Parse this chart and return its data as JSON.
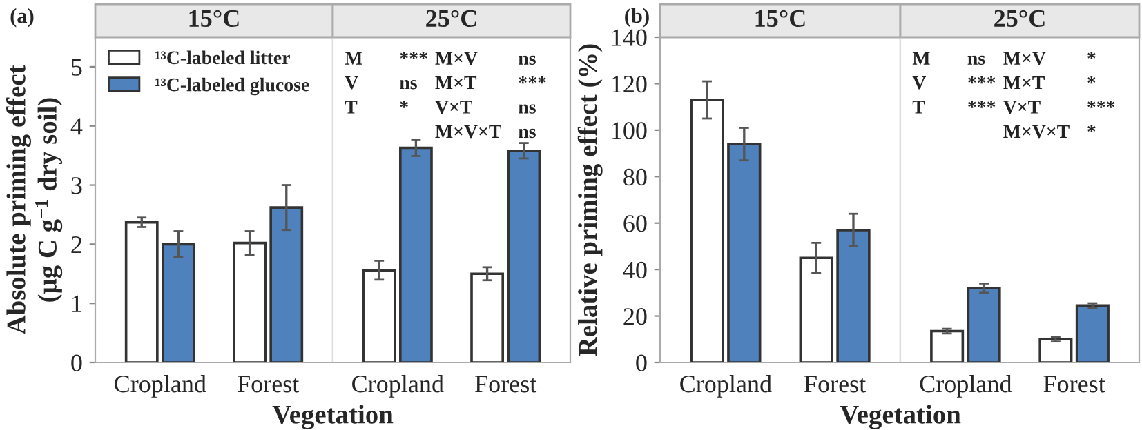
{
  "chart_data": [
    {
      "type": "bar",
      "title": "15°C",
      "ylabel": "Absolute priming effect\n(μg C g$^{−1}$ dry soil)",
      "xlabel": "Vegetation",
      "annotations": [
        "(a)"
      ],
      "categories": [
        "Cropland",
        "Forest"
      ],
      "ylim": [
        0,
        5.5
      ],
      "yticks": [
        0,
        1,
        2,
        3,
        4,
        5
      ],
      "legend": "top left",
      "series": [
        {
          "name": "¹³C-labeled litter",
          "color": "#ffffff",
          "values": [
            2.37,
            2.02
          ],
          "errors": [
            0.08,
            0.2
          ]
        },
        {
          "name": "¹³C-labeled glucose",
          "color": "#4f81bd",
          "values": [
            2.0,
            2.62
          ],
          "errors": [
            0.22,
            0.38
          ]
        }
      ]
    },
    {
      "type": "bar",
      "title": "25°C",
      "categories": [
        "Cropland",
        "Forest"
      ],
      "ylim": [
        0,
        5.5
      ],
      "tick_labels": "x",
      "annotations": [
        "M",
        "***",
        "M×V",
        "ns",
        "V",
        "ns",
        "M×T",
        "***",
        "T",
        "*",
        "V×T",
        "ns",
        "M×V×T",
        "ns"
      ],
      "series": [
        {
          "color": "#ffffff",
          "values": [
            1.56,
            1.5
          ],
          "errors": [
            0.16,
            0.11
          ]
        },
        {
          "color": "#4f81bd",
          "values": [
            3.63,
            3.58
          ],
          "errors": [
            0.14,
            0.13
          ]
        }
      ]
    },
    {
      "type": "bar",
      "title": "15°C",
      "ylabel": "Relative priming effect (%)",
      "xlabel": "Vegetation",
      "annotations": [
        "(b)"
      ],
      "categories": [
        "Cropland",
        "Forest"
      ],
      "ylim": [
        0,
        140
      ],
      "yticks": [
        0,
        20,
        40,
        60,
        80,
        100,
        120,
        140
      ],
      "series": [
        {
          "color": "#ffffff",
          "values": [
            113,
            45
          ],
          "errors": [
            8,
            6.5
          ]
        },
        {
          "color": "#4f81bd",
          "values": [
            94,
            57
          ],
          "errors": [
            7,
            7
          ]
        }
      ]
    },
    {
      "type": "bar",
      "title": "25°C",
      "categories": [
        "Cropland",
        "Forest"
      ],
      "ylim": [
        0,
        140
      ],
      "tick_labels": "x",
      "annotations": [
        "M",
        "ns",
        "M×V",
        "*",
        "V",
        "***",
        "M×T",
        "*",
        "T",
        "***",
        "V×T",
        "***",
        "M×V×T",
        "*"
      ],
      "series": [
        {
          "color": "#ffffff",
          "values": [
            13.5,
            10
          ],
          "errors": [
            1,
            1
          ]
        },
        {
          "color": "#4f81bd",
          "values": [
            32,
            24.5
          ],
          "errors": [
            2,
            1
          ]
        }
      ]
    }
  ]
}
